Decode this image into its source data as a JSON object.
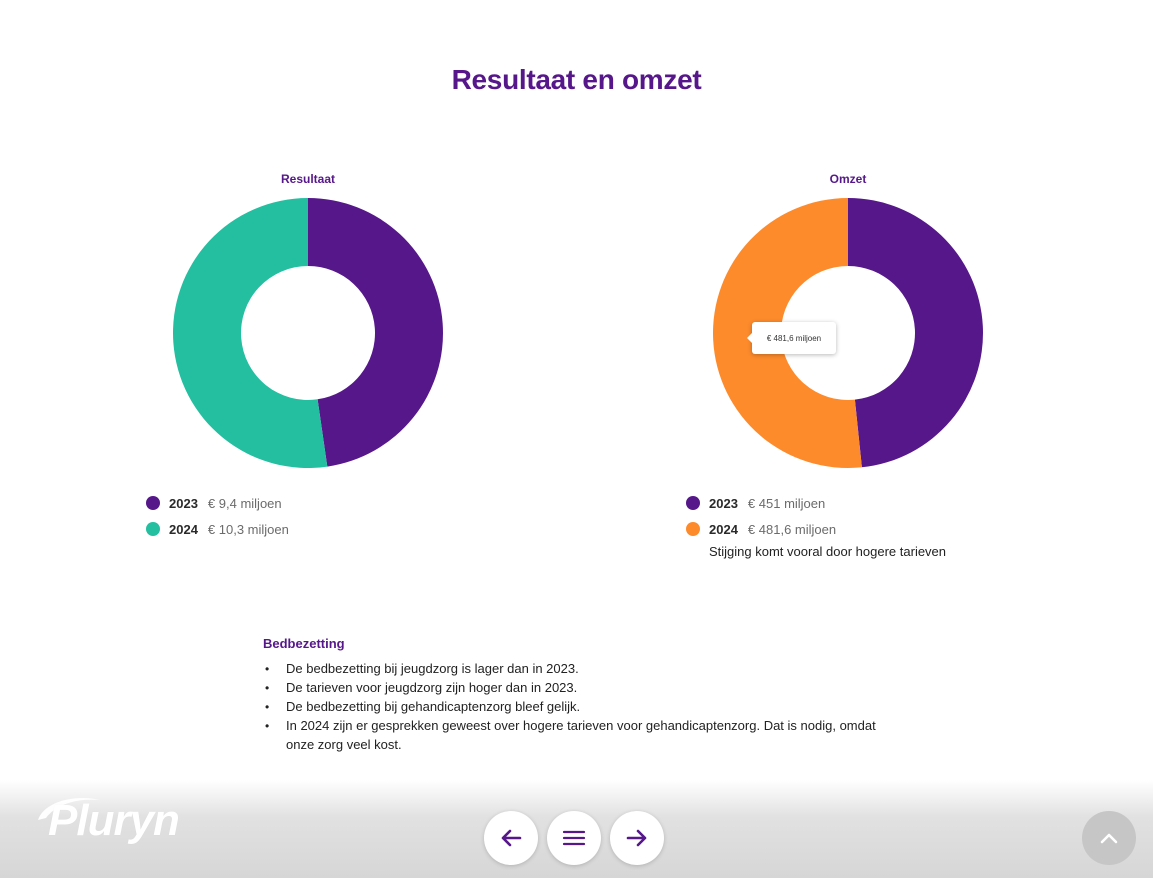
{
  "page": {
    "title": "Resultaat en omzet"
  },
  "colors": {
    "purple": "#56178a",
    "teal": "#23bfa0",
    "orange": "#fd8b2c"
  },
  "chart_data": [
    {
      "type": "pie",
      "title": "Resultaat",
      "categories": [
        "2023",
        "2024"
      ],
      "values": [
        9.4,
        10.3
      ],
      "value_labels": [
        "€ 9,4 miljoen",
        "€ 10,3 miljoen"
      ],
      "colors": [
        "#56178a",
        "#23bfa0"
      ],
      "donut": true,
      "legend": "bottom-left"
    },
    {
      "type": "pie",
      "title": "Omzet",
      "categories": [
        "2023",
        "2024"
      ],
      "values": [
        451,
        481.6
      ],
      "value_labels": [
        "€ 451 miljoen",
        "€ 481,6 miljoen"
      ],
      "colors": [
        "#56178a",
        "#fd8b2c"
      ],
      "donut": true,
      "legend": "bottom-left",
      "tooltip": "€ 481,6 miljoen",
      "note": "Stijging komt vooral door hogere tarieven"
    }
  ],
  "info": {
    "heading": "Bedbezetting",
    "bullets": [
      "De bedbezetting bij jeugdzorg is lager dan in 2023.",
      "De tarieven voor jeugdzorg zijn hoger dan in 2023.",
      "De bedbezetting bij gehandicaptenzorg bleef gelijk.",
      "In 2024 zijn er gesprekken geweest over hogere tarieven voor gehandicaptenzorg. Dat is nodig, omdat onze zorg veel kost."
    ]
  },
  "footer": {
    "logo_text": "Pluryn",
    "icons": {
      "prev": "arrow-left-icon",
      "menu": "hamburger-menu-icon",
      "next": "arrow-right-icon",
      "top": "chevron-up-icon"
    }
  }
}
